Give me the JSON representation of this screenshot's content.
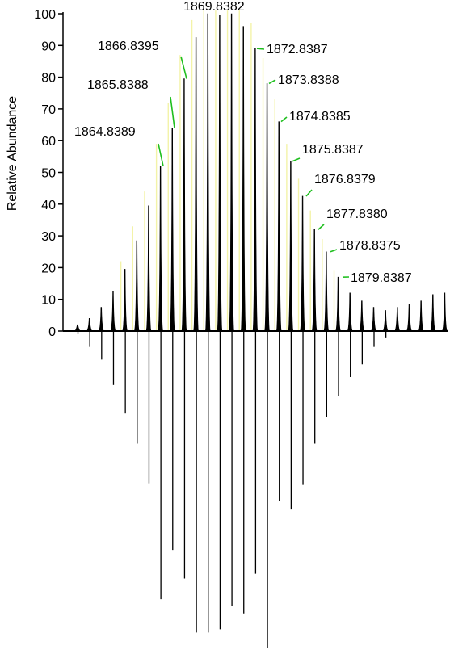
{
  "chart_data": {
    "type": "mirror-spectrum",
    "title": "",
    "xlabel": "",
    "ylabel": "Relative Abundance",
    "ylim": [
      0,
      100
    ],
    "yticks": [
      "0",
      "10",
      "20",
      "30",
      "40",
      "50",
      "60",
      "70",
      "80",
      "90",
      "100"
    ],
    "grid": false,
    "legend": "none",
    "colors": {
      "observed": "#000000",
      "theoretical": "#f3f3a8",
      "label_leader": "#1fbf1f",
      "axis": "#000000"
    },
    "observed_peaks": [
      {
        "index": 0,
        "value": 2,
        "label": ""
      },
      {
        "index": 1,
        "value": 4,
        "label": ""
      },
      {
        "index": 2,
        "value": 7.5,
        "label": ""
      },
      {
        "index": 3,
        "value": 12.5,
        "label": ""
      },
      {
        "index": 4,
        "value": 19.5,
        "label": ""
      },
      {
        "index": 5,
        "value": 28.5,
        "label": ""
      },
      {
        "index": 6,
        "value": 39.5,
        "label": ""
      },
      {
        "index": 7,
        "value": 52,
        "label": "1864.8389"
      },
      {
        "index": 8,
        "value": 64,
        "label": "1865.8388"
      },
      {
        "index": 9,
        "value": 79.5,
        "label": "1866.8395"
      },
      {
        "index": 10,
        "value": 92.5,
        "label": ""
      },
      {
        "index": 11,
        "value": 100,
        "label": ""
      },
      {
        "index": 12,
        "value": 99.5,
        "label": ""
      },
      {
        "index": 13,
        "value": 100,
        "label": "1869.8382"
      },
      {
        "index": 14,
        "value": 96,
        "label": ""
      },
      {
        "index": 15,
        "value": 89,
        "label": "1872.8387"
      },
      {
        "index": 16,
        "value": 78,
        "label": "1873.8388"
      },
      {
        "index": 17,
        "value": 66,
        "label": "1874.8385"
      },
      {
        "index": 18,
        "value": 53.5,
        "label": "1875.8387"
      },
      {
        "index": 19,
        "value": 42.5,
        "label": "1876.8379"
      },
      {
        "index": 20,
        "value": 32,
        "label": "1877.8380"
      },
      {
        "index": 21,
        "value": 25,
        "label": "1878.8375"
      },
      {
        "index": 22,
        "value": 17,
        "label": "1879.8387"
      },
      {
        "index": 23,
        "value": 12,
        "label": ""
      },
      {
        "index": 24,
        "value": 9.5,
        "label": ""
      },
      {
        "index": 25,
        "value": 7.5,
        "label": ""
      },
      {
        "index": 26,
        "value": 6.5,
        "label": ""
      },
      {
        "index": 27,
        "value": 7.5,
        "label": ""
      },
      {
        "index": 28,
        "value": 8.5,
        "label": ""
      },
      {
        "index": 29,
        "value": 9.5,
        "label": ""
      },
      {
        "index": 30,
        "value": 11.5,
        "label": ""
      },
      {
        "index": 31,
        "value": 12,
        "label": ""
      }
    ],
    "theoretical_peaks": [
      {
        "index": 4,
        "value": 22
      },
      {
        "index": 5,
        "value": 33
      },
      {
        "index": 6,
        "value": 44
      },
      {
        "index": 7,
        "value": 59
      },
      {
        "index": 8,
        "value": 72
      },
      {
        "index": 9,
        "value": 87
      },
      {
        "index": 10,
        "value": 98
      },
      {
        "index": 11,
        "value": 101
      },
      {
        "index": 12,
        "value": 101
      },
      {
        "index": 13,
        "value": 101
      },
      {
        "index": 14,
        "value": 101
      },
      {
        "index": 15,
        "value": 97
      },
      {
        "index": 16,
        "value": 86
      },
      {
        "index": 17,
        "value": 73
      },
      {
        "index": 18,
        "value": 59
      },
      {
        "index": 19,
        "value": 48
      },
      {
        "index": 20,
        "value": 38
      },
      {
        "index": 21,
        "value": 29
      },
      {
        "index": 22,
        "value": 19
      }
    ],
    "mirror_peaks": [
      {
        "index": 0,
        "value": -1
      },
      {
        "index": 1,
        "value": -5
      },
      {
        "index": 2,
        "value": -9
      },
      {
        "index": 3,
        "value": -17
      },
      {
        "index": 4,
        "value": -26
      },
      {
        "index": 5,
        "value": -35.5
      },
      {
        "index": 6,
        "value": -48
      },
      {
        "index": 7,
        "value": -84.5
      },
      {
        "index": 8,
        "value": -69
      },
      {
        "index": 9,
        "value": -78
      },
      {
        "index": 10,
        "value": -95
      },
      {
        "index": 11,
        "value": -95
      },
      {
        "index": 12,
        "value": -94
      },
      {
        "index": 13,
        "value": -86.5
      },
      {
        "index": 14,
        "value": -89
      },
      {
        "index": 15,
        "value": -76.5
      },
      {
        "index": 16,
        "value": -100
      },
      {
        "index": 17,
        "value": -53.5
      },
      {
        "index": 18,
        "value": -56
      },
      {
        "index": 19,
        "value": -48.5
      },
      {
        "index": 20,
        "value": -35.5
      },
      {
        "index": 21,
        "value": -27
      },
      {
        "index": 22,
        "value": -20.5
      },
      {
        "index": 23,
        "value": -14.5
      },
      {
        "index": 24,
        "value": -10.5
      },
      {
        "index": 25,
        "value": -5
      },
      {
        "index": 26,
        "value": -2
      }
    ]
  }
}
